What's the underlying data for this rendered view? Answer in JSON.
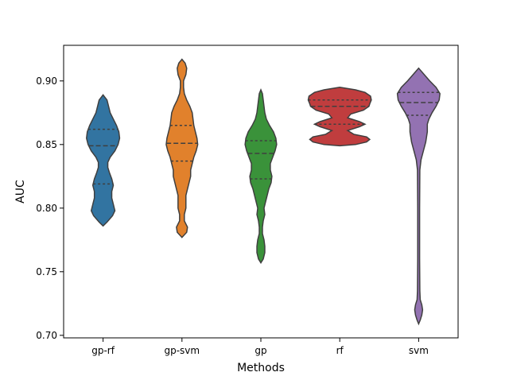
{
  "chart_data": {
    "type": "violin",
    "title": "",
    "xlabel": "Methods",
    "ylabel": "AUC",
    "ylim": [
      0.698,
      0.928
    ],
    "yticks": [
      0.7,
      0.75,
      0.8,
      0.85,
      0.9
    ],
    "ytick_labels": [
      "0.70",
      "0.75",
      "0.80",
      "0.85",
      "0.90"
    ],
    "categories": [
      "gp-rf",
      "gp-svm",
      "gp",
      "rf",
      "svm"
    ],
    "inner": "quartile",
    "grid": false,
    "series": [
      {
        "category": "gp-rf",
        "color": "#3274a1",
        "min": 0.786,
        "max": 0.889,
        "quartiles": [
          0.819,
          0.849,
          0.862
        ],
        "density": [
          [
            0.786,
            0.0
          ],
          [
            0.789,
            0.05
          ],
          [
            0.794,
            0.12
          ],
          [
            0.798,
            0.15
          ],
          [
            0.803,
            0.13
          ],
          [
            0.808,
            0.11
          ],
          [
            0.813,
            0.11
          ],
          [
            0.818,
            0.13
          ],
          [
            0.823,
            0.11
          ],
          [
            0.828,
            0.08
          ],
          [
            0.832,
            0.06
          ],
          [
            0.836,
            0.06
          ],
          [
            0.84,
            0.09
          ],
          [
            0.845,
            0.15
          ],
          [
            0.85,
            0.19
          ],
          [
            0.855,
            0.21
          ],
          [
            0.86,
            0.2
          ],
          [
            0.865,
            0.17
          ],
          [
            0.87,
            0.13
          ],
          [
            0.875,
            0.09
          ],
          [
            0.88,
            0.07
          ],
          [
            0.885,
            0.05
          ],
          [
            0.889,
            0.0
          ]
        ]
      },
      {
        "category": "gp-svm",
        "color": "#e1812c",
        "min": 0.777,
        "max": 0.917,
        "quartiles": [
          0.837,
          0.851,
          0.865
        ],
        "density": [
          [
            0.777,
            0.0
          ],
          [
            0.781,
            0.06
          ],
          [
            0.785,
            0.07
          ],
          [
            0.79,
            0.03
          ],
          [
            0.795,
            0.03
          ],
          [
            0.8,
            0.05
          ],
          [
            0.805,
            0.05
          ],
          [
            0.81,
            0.05
          ],
          [
            0.815,
            0.07
          ],
          [
            0.82,
            0.09
          ],
          [
            0.825,
            0.11
          ],
          [
            0.83,
            0.11
          ],
          [
            0.835,
            0.13
          ],
          [
            0.84,
            0.15
          ],
          [
            0.845,
            0.18
          ],
          [
            0.85,
            0.2
          ],
          [
            0.855,
            0.19
          ],
          [
            0.86,
            0.17
          ],
          [
            0.865,
            0.15
          ],
          [
            0.87,
            0.14
          ],
          [
            0.875,
            0.13
          ],
          [
            0.88,
            0.1
          ],
          [
            0.885,
            0.06
          ],
          [
            0.89,
            0.03
          ],
          [
            0.895,
            0.02
          ],
          [
            0.9,
            0.02
          ],
          [
            0.905,
            0.05
          ],
          [
            0.91,
            0.06
          ],
          [
            0.914,
            0.04
          ],
          [
            0.917,
            0.0
          ]
        ]
      },
      {
        "category": "gp",
        "color": "#3a923a",
        "min": 0.757,
        "max": 0.893,
        "quartiles": [
          0.823,
          0.843,
          0.853
        ],
        "density": [
          [
            0.757,
            0.0
          ],
          [
            0.76,
            0.03
          ],
          [
            0.765,
            0.05
          ],
          [
            0.77,
            0.05
          ],
          [
            0.775,
            0.04
          ],
          [
            0.78,
            0.02
          ],
          [
            0.785,
            0.02
          ],
          [
            0.79,
            0.03
          ],
          [
            0.795,
            0.05
          ],
          [
            0.8,
            0.04
          ],
          [
            0.805,
            0.06
          ],
          [
            0.81,
            0.08
          ],
          [
            0.815,
            0.1
          ],
          [
            0.82,
            0.13
          ],
          [
            0.825,
            0.14
          ],
          [
            0.83,
            0.12
          ],
          [
            0.835,
            0.12
          ],
          [
            0.84,
            0.15
          ],
          [
            0.845,
            0.18
          ],
          [
            0.85,
            0.2
          ],
          [
            0.855,
            0.19
          ],
          [
            0.86,
            0.16
          ],
          [
            0.865,
            0.11
          ],
          [
            0.87,
            0.07
          ],
          [
            0.875,
            0.05
          ],
          [
            0.88,
            0.04
          ],
          [
            0.885,
            0.03
          ],
          [
            0.89,
            0.02
          ],
          [
            0.893,
            0.0
          ]
        ]
      },
      {
        "category": "rf",
        "color": "#c03d3e",
        "min": 0.849,
        "max": 0.895,
        "quartiles": [
          0.866,
          0.88,
          0.885
        ],
        "density": [
          [
            0.849,
            0.0
          ],
          [
            0.85,
            0.2
          ],
          [
            0.852,
            0.34
          ],
          [
            0.854,
            0.38
          ],
          [
            0.856,
            0.34
          ],
          [
            0.858,
            0.18
          ],
          [
            0.861,
            0.1
          ],
          [
            0.864,
            0.25
          ],
          [
            0.866,
            0.32
          ],
          [
            0.868,
            0.25
          ],
          [
            0.871,
            0.1
          ],
          [
            0.874,
            0.14
          ],
          [
            0.877,
            0.3
          ],
          [
            0.88,
            0.37
          ],
          [
            0.882,
            0.38
          ],
          [
            0.885,
            0.4
          ],
          [
            0.888,
            0.39
          ],
          [
            0.891,
            0.32
          ],
          [
            0.893,
            0.2
          ],
          [
            0.895,
            0.0
          ]
        ]
      },
      {
        "category": "svm",
        "color": "#9372b2",
        "min": 0.709,
        "max": 0.91,
        "quartiles": [
          0.873,
          0.883,
          0.891
        ],
        "density": [
          [
            0.709,
            0.0
          ],
          [
            0.712,
            0.02
          ],
          [
            0.716,
            0.04
          ],
          [
            0.72,
            0.05
          ],
          [
            0.724,
            0.04
          ],
          [
            0.728,
            0.02
          ],
          [
            0.735,
            0.015
          ],
          [
            0.76,
            0.012
          ],
          [
            0.8,
            0.012
          ],
          [
            0.83,
            0.015
          ],
          [
            0.838,
            0.03
          ],
          [
            0.845,
            0.06
          ],
          [
            0.852,
            0.09
          ],
          [
            0.86,
            0.11
          ],
          [
            0.866,
            0.11
          ],
          [
            0.87,
            0.13
          ],
          [
            0.875,
            0.17
          ],
          [
            0.88,
            0.22
          ],
          [
            0.885,
            0.26
          ],
          [
            0.89,
            0.27
          ],
          [
            0.895,
            0.22
          ],
          [
            0.9,
            0.14
          ],
          [
            0.905,
            0.07
          ],
          [
            0.91,
            0.0
          ]
        ]
      }
    ]
  }
}
